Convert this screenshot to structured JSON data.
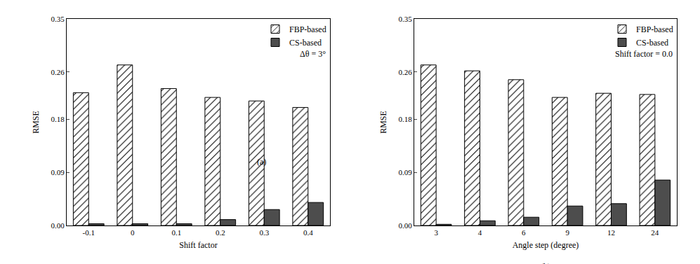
{
  "chart_data": [
    {
      "type": "bar",
      "categories": [
        "-0.1",
        "0",
        "0.1",
        "0.2",
        "0.3",
        "0.4"
      ],
      "series": [
        {
          "name": "FBP-based",
          "color": "#ffffff",
          "marker": "hatch",
          "values": [
            0.225,
            0.272,
            0.232,
            0.217,
            0.211,
            0.2
          ]
        },
        {
          "name": "CS-based",
          "color": "#4d4d4d",
          "values": [
            0.003,
            0.003,
            0.003,
            0.01,
            0.027,
            0.039
          ]
        }
      ],
      "x_label": "Shift factor",
      "y_label": "RMSE",
      "ylim": [
        0,
        0.35
      ],
      "yticks": [
        {
          "value": 0,
          "label": "0.00"
        },
        0.09,
        0.18,
        0.26,
        0.35
      ],
      "legend": "top right",
      "annotations": [
        "Δθ = 3°",
        "(a)"
      ]
    },
    {
      "type": "bar",
      "categories": [
        "3",
        "4",
        "6",
        "9",
        "12",
        "24"
      ],
      "series": [
        {
          "name": "FBP-based",
          "color": "#ffffff",
          "marker": "hatch",
          "values": [
            0.272,
            0.262,
            0.247,
            0.217,
            0.224,
            0.222
          ]
        },
        {
          "name": "CS-based",
          "color": "#4d4d4d",
          "values": [
            0.002,
            0.008,
            0.014,
            0.033,
            0.037,
            0.077
          ]
        }
      ],
      "x_label": "Angle step (degree)",
      "y_label": "RMSE",
      "ylim": [
        0,
        0.35
      ],
      "yticks": [
        {
          "value": 0,
          "label": "0.00"
        },
        0.09,
        0.18,
        0.26,
        0.35
      ],
      "legend": "top right",
      "annotations": [
        "Shift factor = 0.0",
        "(b)"
      ]
    }
  ]
}
